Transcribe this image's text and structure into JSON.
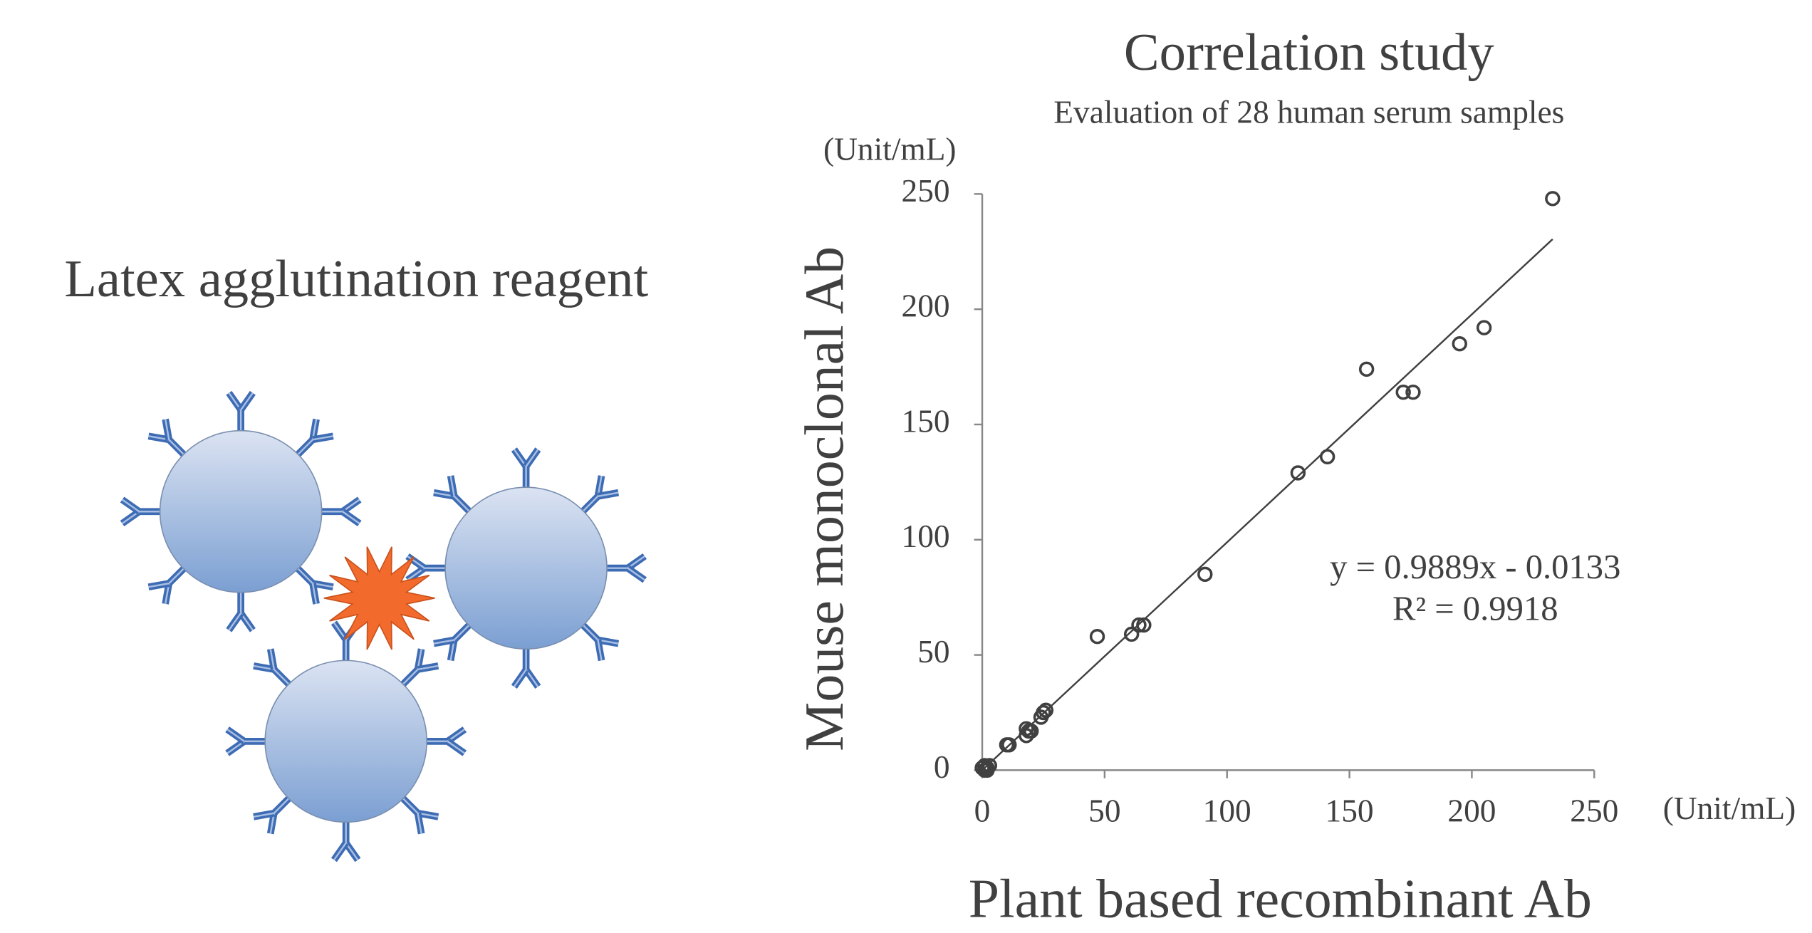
{
  "illustration": {
    "title": "Latex agglutination reagent"
  },
  "chart_data": {
    "type": "scatter",
    "title": "Correlation study",
    "subtitle": "Evaluation of 28 human serum samples",
    "x_label": "Plant based recombinant Ab",
    "y_label": "Mouse monoclonal Ab",
    "x_unit": "(Unit/mL)",
    "y_unit": "(Unit/mL)",
    "x": [
      0,
      1,
      2,
      1,
      2,
      3,
      10,
      11,
      18,
      18,
      19,
      20,
      24,
      25,
      26,
      47,
      61,
      64,
      66,
      91,
      129,
      141,
      157,
      172,
      176,
      195,
      205,
      233
    ],
    "values": [
      1,
      0,
      1,
      2,
      0,
      2,
      11,
      11,
      15,
      18,
      17,
      17,
      23,
      25,
      26,
      58,
      59,
      63,
      63,
      85,
      129,
      136,
      174,
      164,
      164,
      185,
      192,
      248
    ],
    "color": "#404040",
    "xlim": [
      0,
      250
    ],
    "ylim": [
      0,
      250
    ],
    "xticks": [
      0,
      50,
      100,
      150,
      200,
      250
    ],
    "yticks": [
      0,
      50,
      100,
      150,
      200,
      250
    ],
    "trendline": {
      "slope": 0.9889,
      "intercept": -0.0133,
      "label": "y = 0.9889x - 0.0133",
      "r2_label": "R² = 0.9918"
    }
  }
}
